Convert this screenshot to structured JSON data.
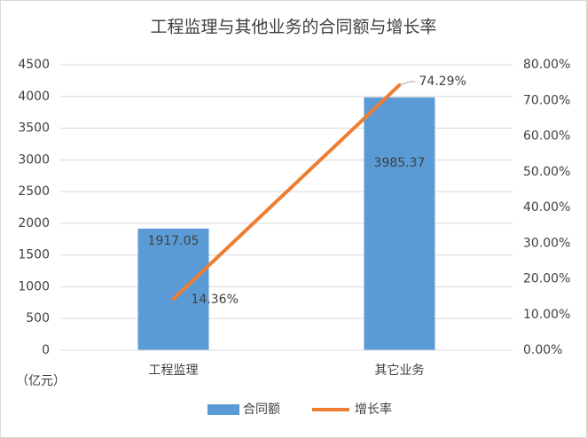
{
  "chart_data": {
    "type": "bar_line",
    "title": "工程监理与其他业务的合同额与增长率",
    "categories": [
      "工程监理",
      "其它业务"
    ],
    "series": [
      {
        "name": "合同额",
        "color": "#5b9bd5",
        "values": [
          1917.05,
          3985.37
        ]
      },
      {
        "name": "增长率",
        "color": "#ed7d31",
        "axis": "y2",
        "values": [
          14.36,
          74.29
        ],
        "value_labels": [
          "14.36%",
          "74.29%"
        ]
      }
    ],
    "y_unit": "（亿元）",
    "ylim": [
      0,
      4500
    ],
    "yticks": [
      0,
      500,
      1000,
      1500,
      2000,
      2500,
      3000,
      3500,
      4000,
      4500
    ],
    "y2lim": [
      0,
      80
    ],
    "y2ticks": [
      {
        "value": 0,
        "label": "0.00%"
      },
      {
        "value": 10,
        "label": "10.00%"
      },
      {
        "value": 20,
        "label": "20.00%"
      },
      {
        "value": 30,
        "label": "30.00%"
      },
      {
        "value": 40,
        "label": "40.00%"
      },
      {
        "value": 50,
        "label": "50.00%"
      },
      {
        "value": 60,
        "label": "60.00%"
      },
      {
        "value": 70,
        "label": "70.00%"
      },
      {
        "value": 80,
        "label": "80.00%"
      }
    ],
    "grid": true,
    "legend": "bottom"
  }
}
